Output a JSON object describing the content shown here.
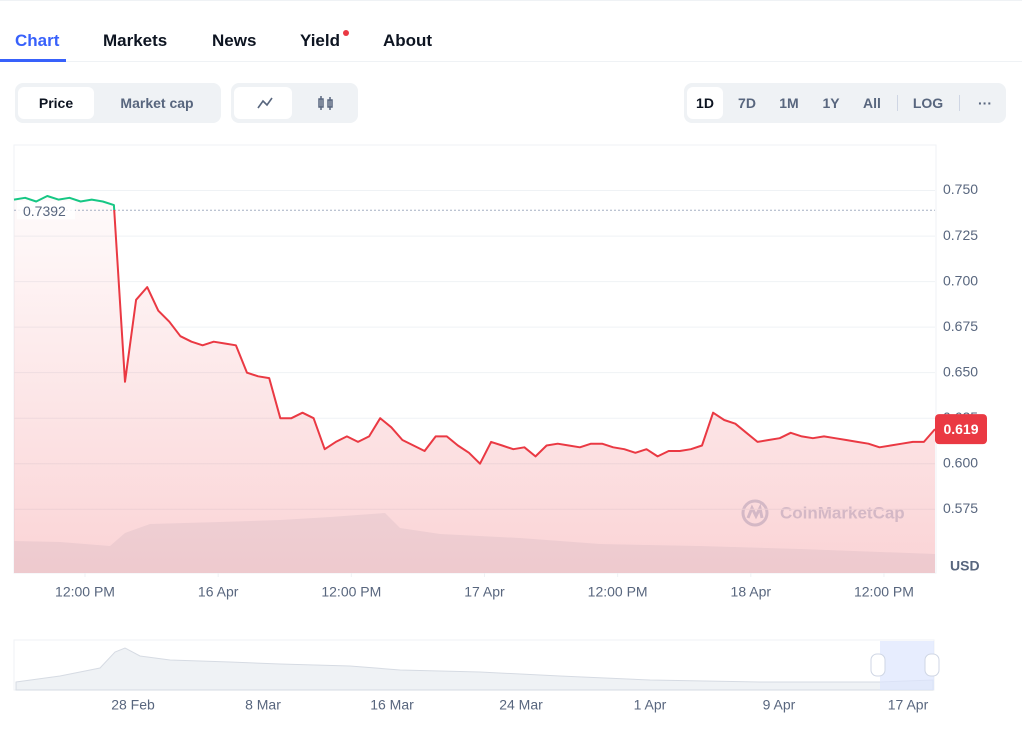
{
  "tabs": [
    "Chart",
    "Markets",
    "News",
    "Yield",
    "About"
  ],
  "toggles": [
    "Price",
    "Market cap"
  ],
  "ranges": [
    "1D",
    "7D",
    "1M",
    "1Y",
    "All",
    "LOG"
  ],
  "more": "···",
  "watermark": "CoinMarketCap",
  "currency": "USD",
  "navigator_labels": [
    "28 Feb",
    "8 Mar",
    "16 Mar",
    "24 Mar",
    "1 Apr",
    "9 Apr",
    "17 Apr"
  ],
  "chart_data": {
    "type": "line",
    "reference_price": 0.7392,
    "up_color": "#16c784",
    "down_color": "#ea3943",
    "values": [
      0.745,
      0.746,
      0.744,
      0.747,
      0.745,
      0.746,
      0.744,
      0.745,
      0.744,
      0.742,
      0.645,
      0.69,
      0.697,
      0.684,
      0.678,
      0.67,
      0.667,
      0.665,
      0.667,
      0.666,
      0.665,
      0.65,
      0.648,
      0.647,
      0.625,
      0.625,
      0.628,
      0.625,
      0.608,
      0.612,
      0.615,
      0.612,
      0.615,
      0.625,
      0.62,
      0.613,
      0.61,
      0.607,
      0.615,
      0.615,
      0.61,
      0.606,
      0.6,
      0.612,
      0.61,
      0.608,
      0.609,
      0.604,
      0.61,
      0.611,
      0.61,
      0.609,
      0.611,
      0.611,
      0.609,
      0.608,
      0.606,
      0.608,
      0.604,
      0.607,
      0.607,
      0.608,
      0.61,
      0.628,
      0.624,
      0.622,
      0.617,
      0.612,
      0.613,
      0.614,
      0.617,
      0.615,
      0.614,
      0.615,
      0.614,
      0.613,
      0.612,
      0.611,
      0.609,
      0.61,
      0.611,
      0.612,
      0.612,
      0.619
    ],
    "xlim": [
      0,
      83
    ],
    "xticks": [
      {
        "value": 6.4,
        "label": "12:00 PM"
      },
      {
        "value": 18.4,
        "label": "16 Apr"
      },
      {
        "value": 30.4,
        "label": "12:00 PM"
      },
      {
        "value": 42.4,
        "label": "17 Apr"
      },
      {
        "value": 54.4,
        "label": "12:00 PM"
      },
      {
        "value": 66.4,
        "label": "18 Apr"
      },
      {
        "value": 78.4,
        "label": "12:00 PM"
      }
    ],
    "ylim": [
      0.54,
      0.775
    ],
    "yticks": [
      {
        "value": 0.575,
        "label": "0.575"
      },
      {
        "value": 0.6,
        "label": "0.600"
      },
      {
        "value": 0.625,
        "label": "0.625"
      },
      {
        "value": 0.65,
        "label": "0.650"
      },
      {
        "value": 0.675,
        "label": "0.675"
      },
      {
        "value": 0.7,
        "label": "0.700"
      },
      {
        "value": 0.725,
        "label": "0.725"
      },
      {
        "value": 0.75,
        "label": "0.750"
      }
    ],
    "grid": true
  }
}
